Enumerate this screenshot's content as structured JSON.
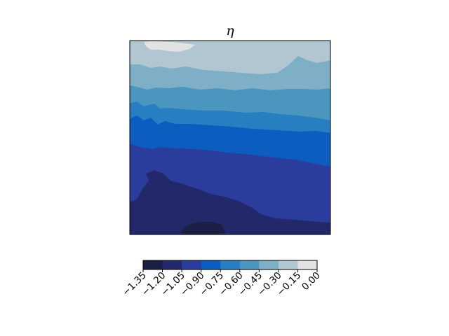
{
  "chart_data": {
    "type": "heatmap",
    "subtype": "filled-contour",
    "title": "η",
    "xlabel": "",
    "ylabel": "",
    "axes_ticks_shown": false,
    "colorbar": {
      "orientation": "horizontal",
      "placement": "below",
      "levels": [
        -1.35,
        -1.2,
        -1.05,
        -0.9,
        -0.75,
        -0.6,
        -0.45,
        -0.3,
        -0.15,
        0.0
      ],
      "tick_labels": [
        "−1.35",
        "−1.20",
        "−1.05",
        "−0.90",
        "−0.75",
        "−0.60",
        "−0.45",
        "−0.30",
        "−0.15",
        "0.00"
      ],
      "colors": [
        "#1b1f45",
        "#22286a",
        "#2b3d9c",
        "#0d5cbf",
        "#277ec0",
        "#4b96be",
        "#7eafc6",
        "#b1c6d0",
        "#e2e2e2"
      ]
    },
    "bands": [
      {
        "range": [
          -1.35,
          -1.2
        ],
        "description": "small darkest patch at bottom center"
      },
      {
        "range": [
          -1.2,
          -1.05
        ],
        "description": "bottom region"
      },
      {
        "range": [
          -1.05,
          -0.9
        ],
        "description": "lower-middle band"
      },
      {
        "range": [
          -0.9,
          -0.75
        ],
        "description": "middle band"
      },
      {
        "range": [
          -0.75,
          -0.6
        ],
        "description": "upper-middle band"
      },
      {
        "range": [
          -0.6,
          -0.45
        ],
        "description": "upper band"
      },
      {
        "range": [
          -0.45,
          -0.3
        ],
        "description": "near top band"
      },
      {
        "range": [
          -0.3,
          -0.15
        ],
        "description": "top band"
      },
      {
        "range": [
          -0.15,
          0.0
        ],
        "description": "small patch at top-left edge"
      }
    ]
  }
}
